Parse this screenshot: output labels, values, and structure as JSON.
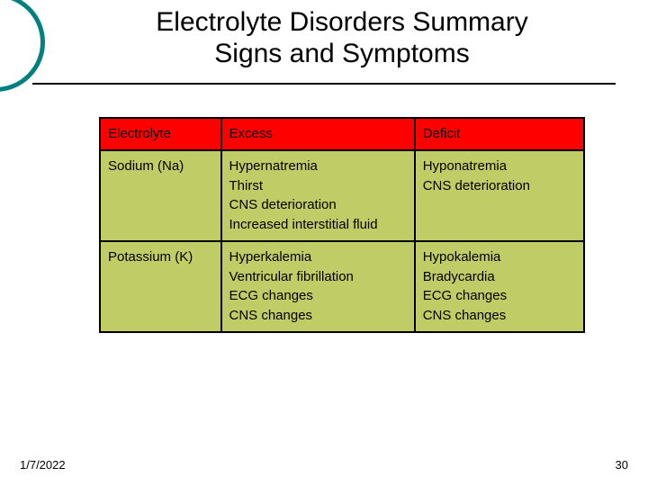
{
  "title": {
    "line1": "Electrolyte Disorders Summary",
    "line2": "Signs and Symptoms"
  },
  "table": {
    "header_bg": "#ff0000",
    "body_bg": "#c0cc66",
    "border_color": "#000000",
    "columns": [
      "Electrolyte",
      "Excess",
      "Deficit"
    ],
    "rows": [
      {
        "electrolyte": "Sodium (Na)",
        "excess": "Hypernatremia\nThirst\nCNS deterioration\nIncreased interstitial fluid",
        "deficit": "Hyponatremia\nCNS deterioration"
      },
      {
        "electrolyte": "Potassium (K)",
        "excess": "Hyperkalemia\nVentricular fibrillation\nECG changes\nCNS changes",
        "deficit": "Hypokalemia\nBradycardia\nECG changes\nCNS changes"
      }
    ]
  },
  "footer": {
    "date": "1/7/2022",
    "page": "30"
  },
  "accent_color": "#008080"
}
